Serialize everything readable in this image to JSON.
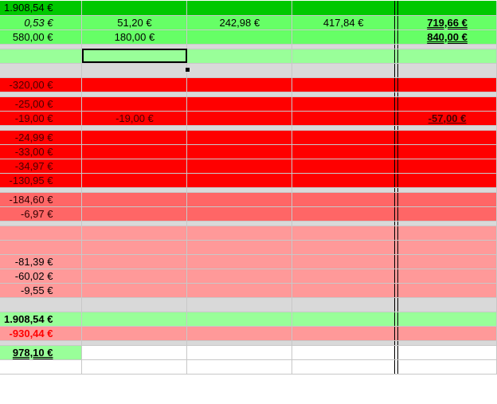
{
  "colors": {
    "dark_green": "#00c800",
    "green": "#66ff66",
    "pale_green": "#99ff99",
    "gray": "#d9d9d9",
    "red": "#ff0000",
    "salmon": "#ff6666",
    "pink": "#ff9999"
  },
  "selected_cell": {
    "row": 4,
    "col": 1
  },
  "rows": [
    {
      "style": "darkgreen",
      "cells": [
        "1.908,54 €",
        "",
        "",
        "",
        ""
      ]
    },
    {
      "style": "green",
      "cells": [
        "0,53 €",
        "51,20 €",
        "242,98 €",
        "417,84 €",
        "719,66 €"
      ],
      "fmt": [
        "it",
        "",
        "",
        "",
        "u2"
      ]
    },
    {
      "style": "green",
      "cells": [
        "580,00 €",
        "180,00 €",
        "",
        "",
        "840,00 €"
      ],
      "fmt": [
        "",
        "",
        "",
        "",
        "u2"
      ]
    },
    {
      "style": "gray",
      "thin": true,
      "cells": [
        "",
        "",
        "",
        "",
        ""
      ]
    },
    {
      "style": "pale",
      "cells": [
        "",
        "",
        "",
        "",
        ""
      ]
    },
    {
      "style": "gray",
      "cells": [
        "",
        "",
        "",
        "",
        ""
      ]
    },
    {
      "style": "red",
      "cells": [
        "-320,00 €",
        "",
        "",
        "",
        ""
      ]
    },
    {
      "style": "gray",
      "thin": true,
      "cells": [
        "",
        "",
        "",
        "",
        ""
      ]
    },
    {
      "style": "red",
      "cells": [
        "-25,00 €",
        "",
        "",
        "",
        ""
      ]
    },
    {
      "style": "red",
      "cells": [
        "-19,00 €",
        "-19,00 €",
        "",
        "",
        "-57,00 €"
      ],
      "fmt": [
        "",
        "",
        "",
        "",
        "u1"
      ]
    },
    {
      "style": "gray",
      "thin": true,
      "cells": [
        "",
        "",
        "",
        "",
        ""
      ]
    },
    {
      "style": "red",
      "cells": [
        "-24,99 €",
        "",
        "",
        "",
        ""
      ]
    },
    {
      "style": "red",
      "cells": [
        "-33,00 €",
        "",
        "",
        "",
        ""
      ]
    },
    {
      "style": "red",
      "cells": [
        "-34,97 €",
        "",
        "",
        "",
        ""
      ]
    },
    {
      "style": "red",
      "cells": [
        "-130,95 €",
        "",
        "",
        "",
        ""
      ]
    },
    {
      "style": "gray",
      "thin": true,
      "cells": [
        "",
        "",
        "",
        "",
        ""
      ]
    },
    {
      "style": "salmon",
      "cells": [
        "-184,60 €",
        "",
        "",
        "",
        ""
      ]
    },
    {
      "style": "salmon",
      "cells": [
        "-6,97 €",
        "",
        "",
        "",
        ""
      ]
    },
    {
      "style": "gray",
      "thin": true,
      "cells": [
        "",
        "",
        "",
        "",
        ""
      ]
    },
    {
      "style": "pink",
      "cells": [
        "",
        "",
        "",
        "",
        ""
      ]
    },
    {
      "style": "pink",
      "cells": [
        "",
        "",
        "",
        "",
        ""
      ]
    },
    {
      "style": "pink",
      "cells": [
        "-81,39 €",
        "",
        "",
        "",
        ""
      ]
    },
    {
      "style": "pink",
      "cells": [
        "-60,02 €",
        "",
        "",
        "",
        ""
      ]
    },
    {
      "style": "pink",
      "cells": [
        "-9,55 €",
        "",
        "",
        "",
        ""
      ]
    },
    {
      "style": "gray",
      "cells": [
        "",
        "",
        "",
        "",
        ""
      ]
    },
    {
      "style": "pale",
      "cells": [
        "1.908,54 €",
        "",
        "",
        "",
        ""
      ],
      "fmt": [
        "b",
        "",
        "",
        "",
        ""
      ]
    },
    {
      "style": "pink",
      "cells": [
        "-930,44 €",
        "",
        "",
        "",
        ""
      ],
      "fmt": [
        "neg",
        "",
        "",
        "",
        ""
      ]
    },
    {
      "style": "gray",
      "thin": true,
      "cells": [
        "",
        "",
        "",
        "",
        ""
      ]
    },
    {
      "style": "white",
      "cells": [
        "978,10 €",
        "",
        "",
        "",
        ""
      ],
      "fmt": [
        "u2",
        "",
        "",
        "",
        ""
      ],
      "first_pale": true
    },
    {
      "style": "white",
      "cells": [
        "",
        "",
        "",
        "",
        ""
      ]
    }
  ]
}
